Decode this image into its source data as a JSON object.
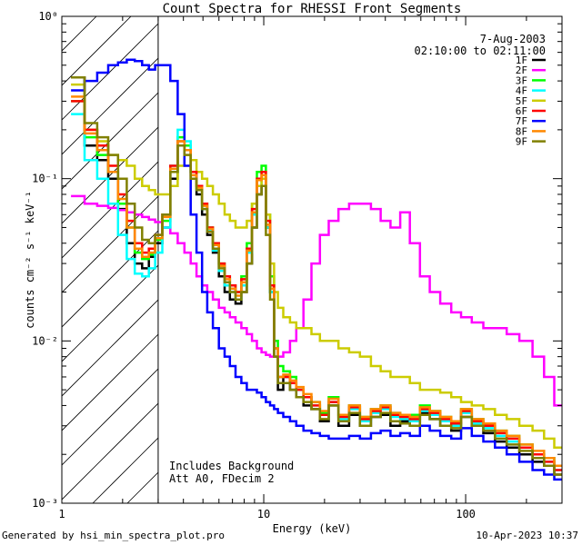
{
  "chart_data": {
    "type": "line",
    "title": "Count Spectra for RHESSI Front Segments",
    "xlabel": "Energy (keV)",
    "ylabel": "counts cm⁻² s⁻¹ keV⁻¹",
    "xscale": "log",
    "yscale": "log",
    "xlim": [
      1,
      300
    ],
    "ylim": [
      0.001,
      1
    ],
    "x_tick_labels": [
      "1",
      "10",
      "100"
    ],
    "y_tick_labels": [
      "10⁻³",
      "10⁻²",
      "10⁻¹",
      "10⁰"
    ],
    "date": "7-Aug-2003",
    "time_range": "02:10:00 to 02:11:00",
    "annotations": [
      "Includes Background",
      "Att A0, FDecim 2"
    ],
    "shaded_region_below_keV": 3,
    "series": [
      {
        "name": "1F",
        "color": "#000000",
        "x": [
          1.2,
          1.4,
          1.6,
          1.8,
          2.0,
          2.2,
          2.4,
          2.6,
          2.8,
          3.0,
          3.3,
          3.6,
          3.9,
          4.2,
          4.5,
          4.8,
          5.1,
          5.4,
          5.8,
          6.2,
          6.6,
          7.0,
          7.5,
          8.0,
          8.5,
          9.0,
          9.5,
          10.0,
          10.5,
          11.0,
          11.5,
          12.0,
          13.0,
          14.0,
          15.0,
          16.5,
          18.0,
          20.0,
          22.0,
          25.0,
          28.0,
          32.0,
          36.0,
          40.0,
          45.0,
          50.0,
          56.0,
          63.0,
          70.0,
          80.0,
          90.0,
          100.0,
          115.0,
          130.0,
          150.0,
          170.0,
          200.0,
          230.0,
          260.0,
          290.0
        ],
        "y": [
          0.42,
          0.16,
          0.13,
          0.1,
          0.065,
          0.04,
          0.03,
          0.028,
          0.033,
          0.04,
          0.05,
          0.1,
          0.16,
          0.15,
          0.1,
          0.08,
          0.06,
          0.045,
          0.035,
          0.025,
          0.02,
          0.018,
          0.017,
          0.02,
          0.03,
          0.05,
          0.08,
          0.09,
          0.05,
          0.02,
          0.008,
          0.005,
          0.006,
          0.005,
          0.0045,
          0.004,
          0.0038,
          0.0032,
          0.004,
          0.003,
          0.0035,
          0.003,
          0.0034,
          0.0035,
          0.003,
          0.0032,
          0.003,
          0.0036,
          0.0033,
          0.003,
          0.0028,
          0.0034,
          0.003,
          0.0027,
          0.0024,
          0.0022,
          0.002,
          0.0018,
          0.0017,
          0.0015
        ]
      },
      {
        "name": "2F",
        "color": "#ff00ff",
        "x": [
          1.2,
          1.4,
          1.6,
          1.8,
          2.0,
          2.2,
          2.4,
          2.6,
          2.8,
          3.0,
          3.3,
          3.6,
          3.9,
          4.2,
          4.5,
          4.8,
          5.1,
          5.4,
          5.8,
          6.2,
          6.6,
          7.0,
          7.5,
          8.0,
          8.5,
          9.0,
          9.5,
          10.0,
          10.5,
          11.0,
          11.5,
          12.0,
          13.0,
          14.0,
          15.0,
          16.5,
          18.0,
          20.0,
          22.0,
          25.0,
          28.0,
          32.0,
          36.0,
          40.0,
          45.0,
          50.0,
          56.0,
          63.0,
          70.0,
          80.0,
          90.0,
          100.0,
          115.0,
          130.0,
          150.0,
          170.0,
          200.0,
          230.0,
          260.0,
          290.0
        ],
        "y": [
          0.078,
          0.07,
          0.068,
          0.066,
          0.064,
          0.062,
          0.06,
          0.058,
          0.056,
          0.054,
          0.05,
          0.046,
          0.04,
          0.035,
          0.03,
          0.025,
          0.022,
          0.02,
          0.018,
          0.016,
          0.015,
          0.014,
          0.013,
          0.012,
          0.011,
          0.01,
          0.009,
          0.0085,
          0.0082,
          0.008,
          0.008,
          0.008,
          0.0085,
          0.01,
          0.012,
          0.018,
          0.03,
          0.045,
          0.055,
          0.065,
          0.07,
          0.07,
          0.065,
          0.055,
          0.05,
          0.062,
          0.04,
          0.025,
          0.02,
          0.017,
          0.015,
          0.014,
          0.013,
          0.012,
          0.012,
          0.011,
          0.01,
          0.008,
          0.006,
          0.004
        ]
      },
      {
        "name": "3F",
        "color": "#00ff00",
        "x": [
          1.2,
          1.4,
          1.6,
          1.8,
          2.0,
          2.2,
          2.4,
          2.6,
          2.8,
          3.0,
          3.3,
          3.6,
          3.9,
          4.2,
          4.5,
          4.8,
          5.1,
          5.4,
          5.8,
          6.2,
          6.6,
          7.0,
          7.5,
          8.0,
          8.5,
          9.0,
          9.5,
          10.0,
          10.5,
          11.0,
          11.5,
          12.0,
          13.0,
          14.0,
          15.0,
          16.5,
          18.0,
          20.0,
          22.0,
          25.0,
          28.0,
          32.0,
          36.0,
          40.0,
          45.0,
          50.0,
          56.0,
          63.0,
          70.0,
          80.0,
          90.0,
          100.0,
          115.0,
          130.0,
          150.0,
          170.0,
          200.0,
          230.0,
          260.0,
          290.0
        ],
        "y": [
          0.3,
          0.18,
          0.14,
          0.11,
          0.07,
          0.05,
          0.035,
          0.032,
          0.034,
          0.042,
          0.055,
          0.11,
          0.18,
          0.16,
          0.11,
          0.09,
          0.07,
          0.05,
          0.04,
          0.03,
          0.025,
          0.022,
          0.02,
          0.025,
          0.04,
          0.07,
          0.11,
          0.12,
          0.06,
          0.025,
          0.01,
          0.007,
          0.0065,
          0.006,
          0.005,
          0.0045,
          0.0042,
          0.0036,
          0.0045,
          0.0035,
          0.004,
          0.0034,
          0.0038,
          0.004,
          0.0036,
          0.0034,
          0.0035,
          0.004,
          0.0037,
          0.0034,
          0.0032,
          0.0038,
          0.0033,
          0.003,
          0.0028,
          0.0026,
          0.0023,
          0.002,
          0.0019,
          0.0017
        ]
      },
      {
        "name": "4F",
        "color": "#00ffff",
        "x": [
          1.2,
          1.4,
          1.6,
          1.8,
          2.0,
          2.2,
          2.4,
          2.6,
          2.8,
          3.0,
          3.3,
          3.6,
          3.9,
          4.2,
          4.5,
          4.8,
          5.1,
          5.4,
          5.8,
          6.2,
          6.6,
          7.0,
          7.5,
          8.0,
          8.5,
          9.0,
          9.5,
          10.0,
          10.5,
          11.0,
          11.5,
          12.0,
          13.0,
          14.0,
          15.0,
          16.5,
          18.0,
          20.0,
          22.0,
          25.0,
          28.0,
          32.0,
          36.0,
          40.0,
          45.0,
          50.0,
          56.0,
          63.0,
          70.0,
          80.0,
          90.0,
          100.0,
          115.0,
          130.0,
          150.0,
          170.0,
          200.0,
          230.0,
          260.0,
          290.0
        ],
        "y": [
          0.25,
          0.13,
          0.1,
          0.07,
          0.045,
          0.032,
          0.026,
          0.025,
          0.028,
          0.035,
          0.05,
          0.12,
          0.2,
          0.17,
          0.11,
          0.085,
          0.065,
          0.048,
          0.036,
          0.027,
          0.022,
          0.02,
          0.018,
          0.022,
          0.035,
          0.06,
          0.09,
          0.1,
          0.05,
          0.02,
          0.009,
          0.006,
          0.006,
          0.0055,
          0.005,
          0.0045,
          0.004,
          0.0035,
          0.0042,
          0.0033,
          0.0038,
          0.0032,
          0.0036,
          0.0038,
          0.0034,
          0.0033,
          0.0032,
          0.0037,
          0.0035,
          0.0032,
          0.003,
          0.0036,
          0.0031,
          0.0029,
          0.0026,
          0.0024,
          0.0022,
          0.002,
          0.0018,
          0.0016
        ]
      },
      {
        "name": "5F",
        "color": "#cccc00",
        "x": [
          1.2,
          1.4,
          1.6,
          1.8,
          2.0,
          2.2,
          2.4,
          2.6,
          2.8,
          3.0,
          3.3,
          3.6,
          3.9,
          4.2,
          4.5,
          4.8,
          5.1,
          5.4,
          5.8,
          6.2,
          6.6,
          7.0,
          7.5,
          8.0,
          8.5,
          9.0,
          9.5,
          10.0,
          10.5,
          11.0,
          11.5,
          12.0,
          13.0,
          14.0,
          15.0,
          16.5,
          18.0,
          20.0,
          22.0,
          25.0,
          28.0,
          32.0,
          36.0,
          40.0,
          45.0,
          50.0,
          56.0,
          63.0,
          70.0,
          80.0,
          90.0,
          100.0,
          115.0,
          130.0,
          150.0,
          170.0,
          200.0,
          230.0,
          260.0,
          290.0
        ],
        "y": [
          0.38,
          0.2,
          0.17,
          0.14,
          0.13,
          0.12,
          0.1,
          0.09,
          0.085,
          0.08,
          0.08,
          0.09,
          0.12,
          0.15,
          0.13,
          0.11,
          0.1,
          0.09,
          0.08,
          0.07,
          0.06,
          0.055,
          0.05,
          0.05,
          0.055,
          0.07,
          0.09,
          0.1,
          0.06,
          0.03,
          0.02,
          0.016,
          0.014,
          0.013,
          0.012,
          0.012,
          0.011,
          0.01,
          0.01,
          0.009,
          0.0085,
          0.008,
          0.007,
          0.0065,
          0.006,
          0.006,
          0.0055,
          0.005,
          0.005,
          0.0048,
          0.0045,
          0.0042,
          0.004,
          0.0038,
          0.0035,
          0.0033,
          0.003,
          0.0028,
          0.0025,
          0.0022
        ]
      },
      {
        "name": "6F",
        "color": "#ff0000",
        "x": [
          1.2,
          1.4,
          1.6,
          1.8,
          2.0,
          2.2,
          2.4,
          2.6,
          2.8,
          3.0,
          3.3,
          3.6,
          3.9,
          4.2,
          4.5,
          4.8,
          5.1,
          5.4,
          5.8,
          6.2,
          6.6,
          7.0,
          7.5,
          8.0,
          8.5,
          9.0,
          9.5,
          10.0,
          10.5,
          11.0,
          11.5,
          12.0,
          13.0,
          14.0,
          15.0,
          16.5,
          18.0,
          20.0,
          22.0,
          25.0,
          28.0,
          32.0,
          36.0,
          40.0,
          45.0,
          50.0,
          56.0,
          63.0,
          70.0,
          80.0,
          90.0,
          100.0,
          115.0,
          130.0,
          150.0,
          170.0,
          200.0,
          230.0,
          260.0,
          290.0
        ],
        "y": [
          0.3,
          0.2,
          0.16,
          0.12,
          0.08,
          0.055,
          0.04,
          0.035,
          0.037,
          0.045,
          0.06,
          0.12,
          0.17,
          0.15,
          0.11,
          0.09,
          0.07,
          0.05,
          0.04,
          0.03,
          0.025,
          0.022,
          0.02,
          0.024,
          0.037,
          0.065,
          0.1,
          0.11,
          0.055,
          0.022,
          0.009,
          0.006,
          0.006,
          0.0055,
          0.005,
          0.0045,
          0.004,
          0.0035,
          0.0042,
          0.0034,
          0.0039,
          0.0033,
          0.0037,
          0.0039,
          0.0035,
          0.0034,
          0.0033,
          0.0038,
          0.0036,
          0.0033,
          0.0031,
          0.0037,
          0.0032,
          0.003,
          0.0027,
          0.0025,
          0.0022,
          0.002,
          0.0018,
          0.0016
        ]
      },
      {
        "name": "7F",
        "color": "#0000ff",
        "x": [
          1.2,
          1.4,
          1.6,
          1.8,
          2.0,
          2.2,
          2.4,
          2.6,
          2.8,
          3.0,
          3.3,
          3.6,
          3.9,
          4.2,
          4.5,
          4.8,
          5.1,
          5.4,
          5.8,
          6.2,
          6.6,
          7.0,
          7.5,
          8.0,
          8.5,
          9.0,
          9.5,
          10.0,
          10.5,
          11.0,
          11.5,
          12.0,
          13.0,
          14.0,
          15.0,
          16.5,
          18.0,
          20.0,
          22.0,
          25.0,
          28.0,
          32.0,
          36.0,
          40.0,
          45.0,
          50.0,
          56.0,
          63.0,
          70.0,
          80.0,
          90.0,
          100.0,
          115.0,
          130.0,
          150.0,
          170.0,
          200.0,
          230.0,
          260.0,
          290.0
        ],
        "y": [
          0.35,
          0.4,
          0.45,
          0.5,
          0.52,
          0.54,
          0.53,
          0.5,
          0.47,
          0.5,
          0.5,
          0.4,
          0.25,
          0.12,
          0.06,
          0.035,
          0.02,
          0.015,
          0.012,
          0.009,
          0.008,
          0.007,
          0.006,
          0.0055,
          0.005,
          0.005,
          0.0048,
          0.0045,
          0.0042,
          0.004,
          0.0038,
          0.0036,
          0.0034,
          0.0032,
          0.003,
          0.0028,
          0.0027,
          0.0026,
          0.0025,
          0.0025,
          0.0026,
          0.0025,
          0.0027,
          0.0028,
          0.0026,
          0.0027,
          0.0026,
          0.003,
          0.0028,
          0.0026,
          0.0025,
          0.0029,
          0.0026,
          0.0024,
          0.0022,
          0.002,
          0.0018,
          0.0016,
          0.0015,
          0.0014
        ]
      },
      {
        "name": "8F",
        "color": "#ff8800",
        "x": [
          1.2,
          1.4,
          1.6,
          1.8,
          2.0,
          2.2,
          2.4,
          2.6,
          2.8,
          3.0,
          3.3,
          3.6,
          3.9,
          4.2,
          4.5,
          4.8,
          5.1,
          5.4,
          5.8,
          6.2,
          6.6,
          7.0,
          7.5,
          8.0,
          8.5,
          9.0,
          9.5,
          10.0,
          10.5,
          11.0,
          11.5,
          12.0,
          13.0,
          14.0,
          15.0,
          16.5,
          18.0,
          20.0,
          22.0,
          25.0,
          28.0,
          32.0,
          36.0,
          40.0,
          45.0,
          50.0,
          56.0,
          63.0,
          70.0,
          80.0,
          90.0,
          100.0,
          115.0,
          130.0,
          150.0,
          170.0,
          200.0,
          230.0,
          260.0,
          290.0
        ],
        "y": [
          0.32,
          0.19,
          0.15,
          0.11,
          0.075,
          0.05,
          0.037,
          0.033,
          0.035,
          0.043,
          0.058,
          0.115,
          0.17,
          0.15,
          0.105,
          0.088,
          0.068,
          0.049,
          0.039,
          0.029,
          0.024,
          0.021,
          0.019,
          0.023,
          0.036,
          0.062,
          0.098,
          0.105,
          0.052,
          0.021,
          0.009,
          0.006,
          0.0062,
          0.0057,
          0.0052,
          0.0047,
          0.0042,
          0.0037,
          0.0044,
          0.0035,
          0.004,
          0.0034,
          0.0038,
          0.004,
          0.0036,
          0.0035,
          0.0034,
          0.0039,
          0.0037,
          0.0034,
          0.0032,
          0.0038,
          0.0033,
          0.0031,
          0.0028,
          0.0026,
          0.0023,
          0.0021,
          0.0019,
          0.0017
        ]
      },
      {
        "name": "9F",
        "color": "#808000",
        "x": [
          1.2,
          1.4,
          1.6,
          1.8,
          2.0,
          2.2,
          2.4,
          2.6,
          2.8,
          3.0,
          3.3,
          3.6,
          3.9,
          4.2,
          4.5,
          4.8,
          5.1,
          5.4,
          5.8,
          6.2,
          6.6,
          7.0,
          7.5,
          8.0,
          8.5,
          9.0,
          9.5,
          10.0,
          10.5,
          11.0,
          11.5,
          12.0,
          13.0,
          14.0,
          15.0,
          16.5,
          18.0,
          20.0,
          22.0,
          25.0,
          28.0,
          32.0,
          36.0,
          40.0,
          45.0,
          50.0,
          56.0,
          63.0,
          70.0,
          80.0,
          90.0,
          100.0,
          115.0,
          130.0,
          150.0,
          170.0,
          200.0,
          230.0,
          260.0,
          290.0
        ],
        "y": [
          0.42,
          0.22,
          0.18,
          0.14,
          0.1,
          0.07,
          0.05,
          0.042,
          0.04,
          0.045,
          0.06,
          0.11,
          0.16,
          0.14,
          0.1,
          0.085,
          0.065,
          0.047,
          0.037,
          0.028,
          0.023,
          0.02,
          0.018,
          0.02,
          0.03,
          0.05,
          0.08,
          0.09,
          0.045,
          0.018,
          0.008,
          0.0055,
          0.0055,
          0.005,
          0.0045,
          0.0042,
          0.0038,
          0.0033,
          0.004,
          0.0032,
          0.0036,
          0.003,
          0.0034,
          0.0036,
          0.0032,
          0.0031,
          0.003,
          0.0035,
          0.0033,
          0.003,
          0.0029,
          0.0034,
          0.003,
          0.0028,
          0.0025,
          0.0023,
          0.0021,
          0.0019,
          0.0017,
          0.0015
        ]
      }
    ]
  },
  "footer": {
    "left": "Generated by hsi_min_spectra_plot.pro",
    "right": "10-Apr-2023 10:37"
  }
}
